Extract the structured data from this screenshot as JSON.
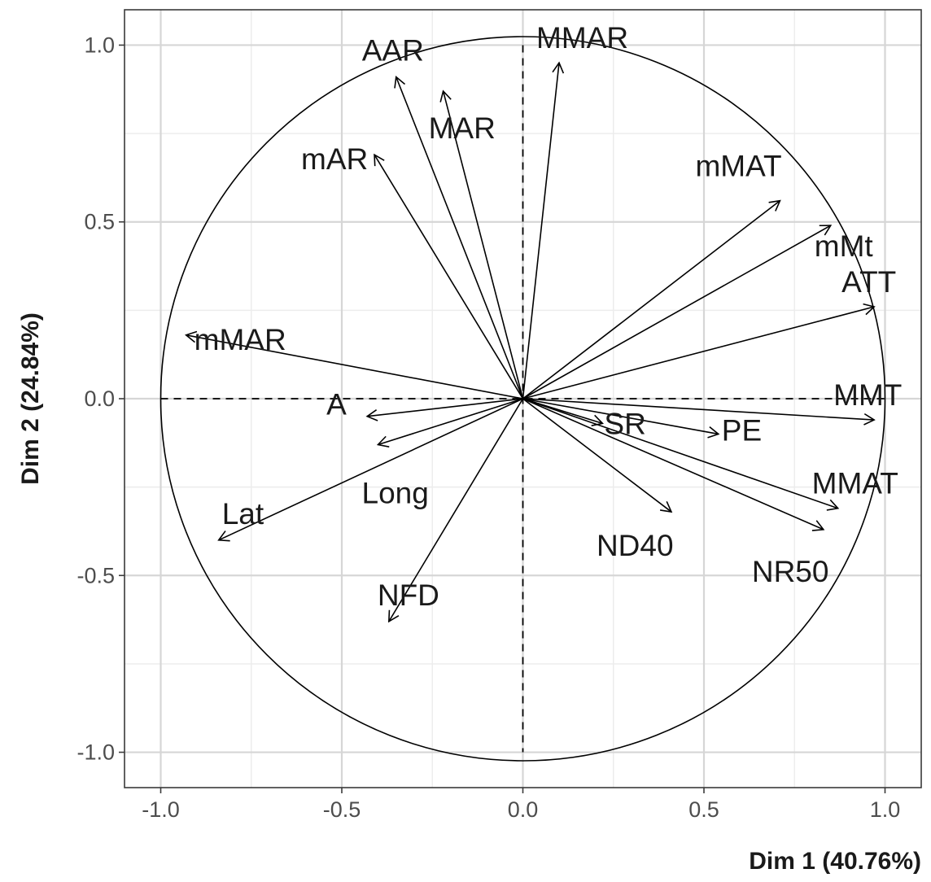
{
  "chart_data": {
    "type": "scatter",
    "subtype": "pca-correlation-circle",
    "xlabel": "Dim 1 (40.76%)",
    "ylabel": "Dim 2 (24.84%)",
    "xlim": [
      -1.1,
      1.1
    ],
    "ylim": [
      -1.1,
      1.1
    ],
    "x_ticks": [
      -1.0,
      -0.5,
      0.0,
      0.5,
      1.0
    ],
    "y_ticks": [
      -1.0,
      -0.5,
      0.0,
      0.5,
      1.0
    ],
    "x_tick_labels": [
      "-1.0",
      "-0.5",
      "0.0",
      "0.5",
      "1.0"
    ],
    "y_tick_labels": [
      "-1.0",
      "-0.5",
      "0.0",
      "0.5",
      "1.0"
    ],
    "grid": true,
    "unit_circle": true,
    "reference_lines": [
      0,
      0
    ],
    "variables": [
      {
        "name": "AAR",
        "x": -0.35,
        "y": 0.91
      },
      {
        "name": "MMAR",
        "x": 0.1,
        "y": 0.95
      },
      {
        "name": "MAR",
        "x": -0.22,
        "y": 0.87
      },
      {
        "name": "mAR",
        "x": -0.41,
        "y": 0.69
      },
      {
        "name": "mMAT",
        "x": 0.71,
        "y": 0.56
      },
      {
        "name": "mMt",
        "x": 0.85,
        "y": 0.49
      },
      {
        "name": "ATT",
        "x": 0.97,
        "y": 0.26
      },
      {
        "name": "mMAR",
        "x": -0.93,
        "y": 0.18
      },
      {
        "name": "SR",
        "x": 0.22,
        "y": -0.07
      },
      {
        "name": "PE",
        "x": 0.54,
        "y": -0.1
      },
      {
        "name": "MMT",
        "x": 0.97,
        "y": -0.06
      },
      {
        "name": "A",
        "x": -0.43,
        "y": -0.05
      },
      {
        "name": "Long",
        "x": -0.4,
        "y": -0.13
      },
      {
        "name": "MMAT",
        "x": 0.87,
        "y": -0.31
      },
      {
        "name": "ND40",
        "x": 0.41,
        "y": -0.32
      },
      {
        "name": "NR50",
        "x": 0.83,
        "y": -0.37
      },
      {
        "name": "Lat",
        "x": -0.84,
        "y": -0.4
      },
      {
        "name": "NFD",
        "x": -0.37,
        "y": -0.63
      }
    ]
  }
}
